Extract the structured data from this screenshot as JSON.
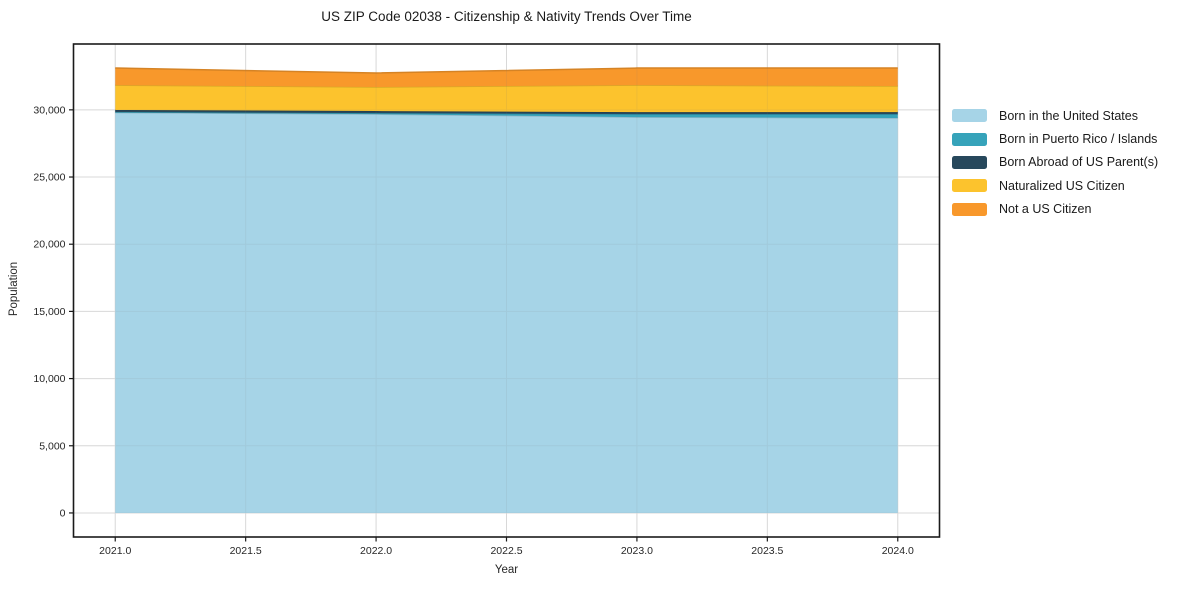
{
  "title": "US ZIP Code 02038 - Citizenship & Nativity Trends Over Time",
  "chart_data": {
    "type": "area",
    "stacked": true,
    "title": "US ZIP Code 02038 - Citizenship & Nativity Trends Over Time",
    "xlabel": "Year",
    "ylabel": "Population",
    "x": [
      2021,
      2022,
      2023,
      2024
    ],
    "series": [
      {
        "name": "Born in the United States",
        "color": "#a6d4e7",
        "values": [
          29800,
          29680,
          29460,
          29390
        ]
      },
      {
        "name": "Born in Puerto Rico / Islands",
        "color": "#36a3ba",
        "values": [
          40,
          80,
          220,
          290
        ]
      },
      {
        "name": "Born Abroad of US Parent(s)",
        "color": "#27485c",
        "values": [
          150,
          150,
          150,
          150
        ]
      },
      {
        "name": "Naturalized US Citizen",
        "color": "#fcc32d",
        "values": [
          1850,
          1790,
          2010,
          1940
        ]
      },
      {
        "name": "Not a US Citizen",
        "color": "#f8982b",
        "values": [
          1270,
          1040,
          1270,
          1340
        ]
      }
    ],
    "totals": [
      33110,
      32740,
      33110,
      33110
    ],
    "xlim": [
      2020.84,
      2024.16
    ],
    "ylim": [
      -1790,
      34900
    ],
    "xticks": [
      2021.0,
      2021.5,
      2022.0,
      2022.5,
      2023.0,
      2023.5,
      2024.0
    ],
    "xtick_labels": [
      "2021.0",
      "2021.5",
      "2022.0",
      "2022.5",
      "2023.0",
      "2023.5",
      "2024.0"
    ],
    "yticks": [
      0,
      5000,
      10000,
      15000,
      20000,
      25000,
      30000
    ],
    "ytick_labels": [
      "0",
      "5,000",
      "10,000",
      "15,000",
      "20,000",
      "25,000",
      "30,000"
    ],
    "grid": true,
    "legend_position": "right",
    "colors": {
      "frame": "#1a1a1a",
      "gridline": "#e4e4e4",
      "tick_text": "#262626"
    }
  }
}
